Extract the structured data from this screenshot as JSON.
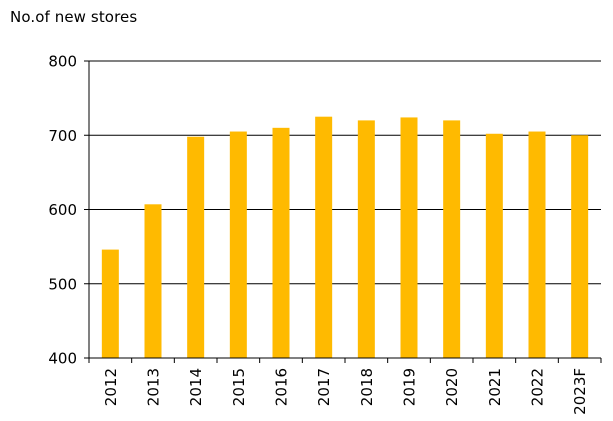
{
  "chart_data": {
    "type": "bar",
    "title": "No.of new stores",
    "xlabel": "",
    "ylabel": "",
    "categories": [
      "2012",
      "2013",
      "2014",
      "2015",
      "2016",
      "2017",
      "2018",
      "2019",
      "2020",
      "2021",
      "2022",
      "2023F"
    ],
    "series": [
      {
        "values": [
          546,
          607,
          698,
          705,
          710,
          725,
          720,
          724,
          720,
          702,
          705,
          700
        ]
      }
    ],
    "ylim": [
      400,
      800
    ],
    "yticks": [
      "400",
      "500",
      "600",
      "700",
      "800"
    ],
    "grid": "horizontal",
    "legend": "none",
    "colors": {
      "bar": "#FFBA00",
      "axis": "#000000",
      "grid": "#000000"
    }
  }
}
